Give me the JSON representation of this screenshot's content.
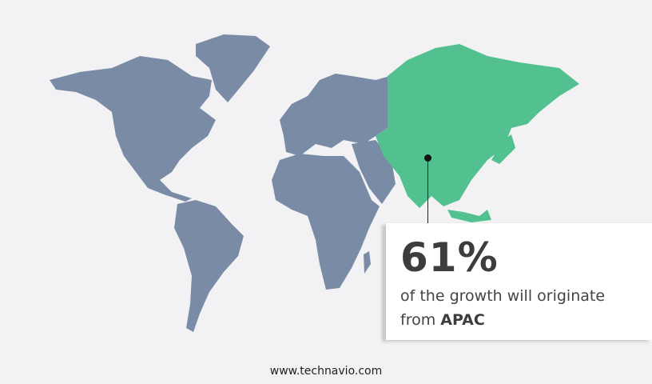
{
  "map": {
    "colors": {
      "other": "#7a8ba6",
      "highlight": "#52c08f",
      "background": "#f2f2f4"
    },
    "highlighted_region": "APAC"
  },
  "callout": {
    "percent": "61%",
    "text": "of the growth will originate",
    "text_from": "from",
    "region": "APAC"
  },
  "footer": {
    "url": "www.technavio.com"
  }
}
